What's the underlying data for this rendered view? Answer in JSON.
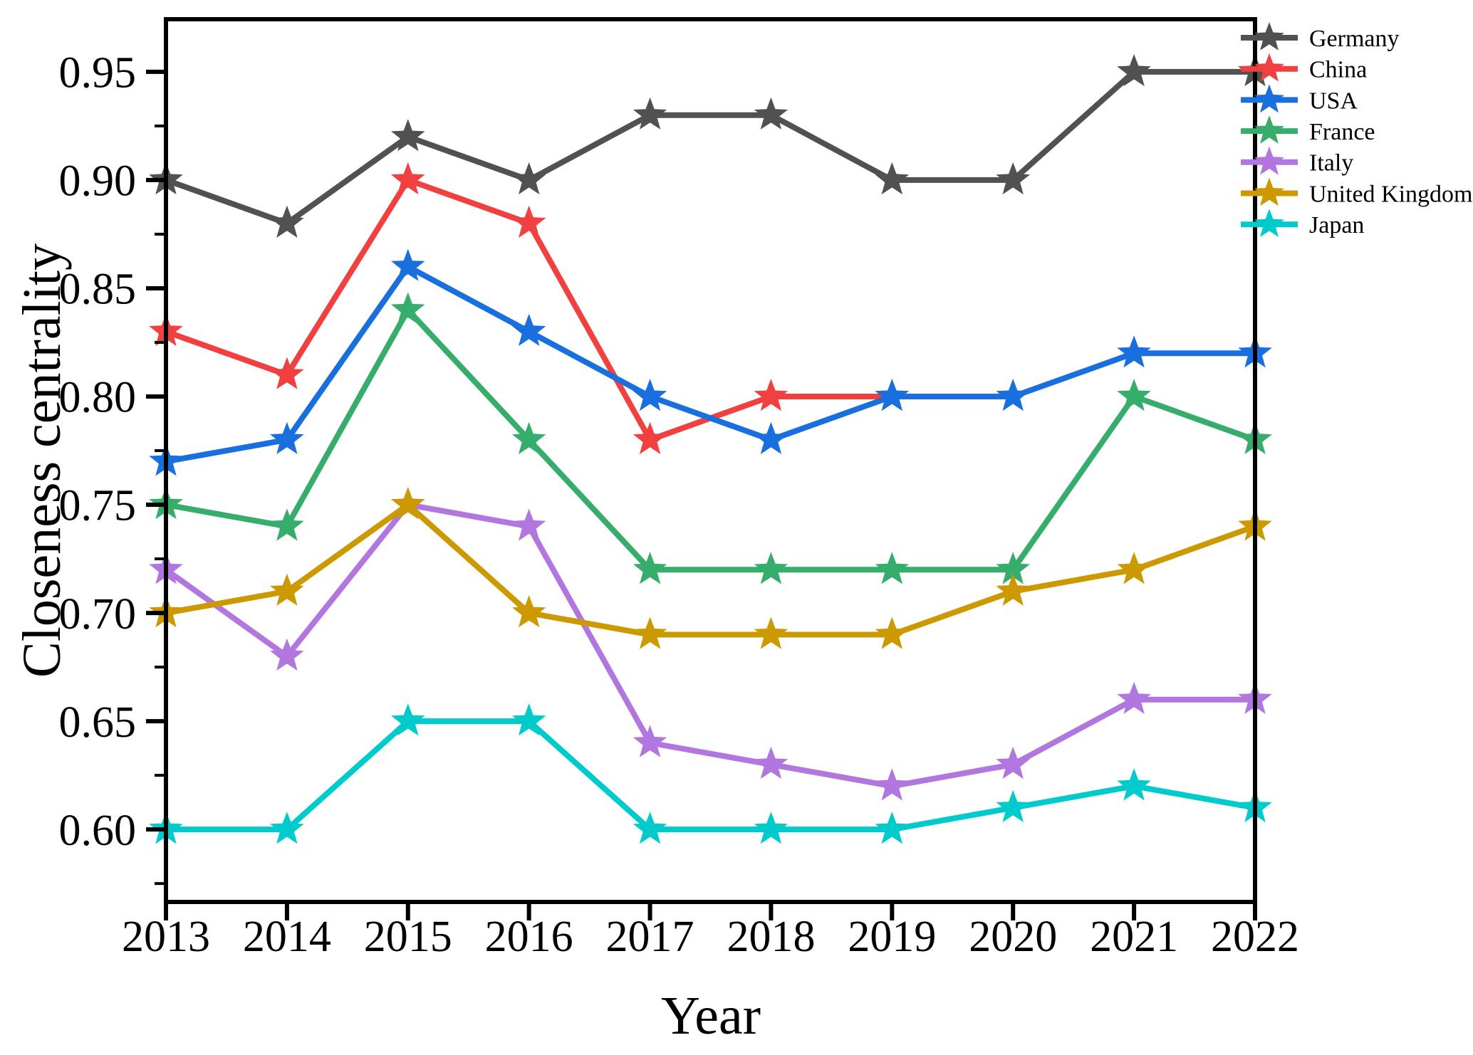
{
  "figure": {
    "background": "#ffffff",
    "axis_color": "#000000"
  },
  "chart_data": {
    "type": "line",
    "title": "",
    "xlabel": "Year",
    "ylabel": "Closeness centrality",
    "x": [
      2013,
      2014,
      2015,
      2016,
      2017,
      2018,
      2019,
      2020,
      2021,
      2022
    ],
    "xtick_labels": [
      "2013",
      "2014",
      "2015",
      "2016",
      "2017",
      "2018",
      "2019",
      "2020",
      "2021",
      "2022"
    ],
    "series": [
      {
        "name": "Germany",
        "color": "#515151",
        "marker": "star",
        "values": [
          0.9,
          0.88,
          0.92,
          0.9,
          0.93,
          0.93,
          0.9,
          0.9,
          0.95,
          0.95
        ]
      },
      {
        "name": "China",
        "color": "#F14040",
        "marker": "star",
        "values": [
          0.83,
          0.81,
          0.9,
          0.88,
          0.78,
          0.8,
          0.8,
          null,
          null,
          null
        ]
      },
      {
        "name": "USA",
        "color": "#1A6FDF",
        "marker": "star",
        "values": [
          0.77,
          0.78,
          0.86,
          0.83,
          0.8,
          0.78,
          0.8,
          0.8,
          0.82,
          0.82
        ]
      },
      {
        "name": "France",
        "color": "#37AD6B",
        "marker": "star",
        "values": [
          0.75,
          0.74,
          0.84,
          0.78,
          0.72,
          0.72,
          0.72,
          0.72,
          0.8,
          0.78
        ]
      },
      {
        "name": "Italy",
        "color": "#B177DE",
        "marker": "star",
        "values": [
          0.72,
          0.68,
          0.75,
          0.74,
          0.64,
          0.63,
          0.62,
          0.63,
          0.66,
          0.66
        ]
      },
      {
        "name": "United Kingdom",
        "color": "#CC9900",
        "marker": "star",
        "values": [
          0.7,
          0.71,
          0.75,
          0.7,
          0.69,
          0.69,
          0.69,
          0.71,
          0.72,
          0.74
        ]
      },
      {
        "name": "Japan",
        "color": "#00CBCC",
        "marker": "star",
        "values": [
          0.6,
          0.6,
          0.65,
          0.65,
          0.6,
          0.6,
          0.6,
          0.61,
          0.62,
          0.61
        ]
      }
    ],
    "xlim": [
      2013,
      2022
    ],
    "ylim": [
      0.5665,
      0.9743
    ],
    "yticks_major": [
      0.6,
      0.65,
      0.7,
      0.75,
      0.8,
      0.85,
      0.9,
      0.95
    ],
    "ytick_labels": [
      "0.60",
      "0.65",
      "0.70",
      "0.75",
      "0.80",
      "0.85",
      "0.90",
      "0.95"
    ],
    "yticks_minor": [
      0.575,
      0.625,
      0.675,
      0.725,
      0.775,
      0.825,
      0.875,
      0.925
    ],
    "grid": false,
    "legend_position": "top-right-outside",
    "legend_entries": [
      "Germany",
      "China",
      "USA",
      "France",
      "Italy",
      "United Kingdom",
      "Japan"
    ]
  }
}
